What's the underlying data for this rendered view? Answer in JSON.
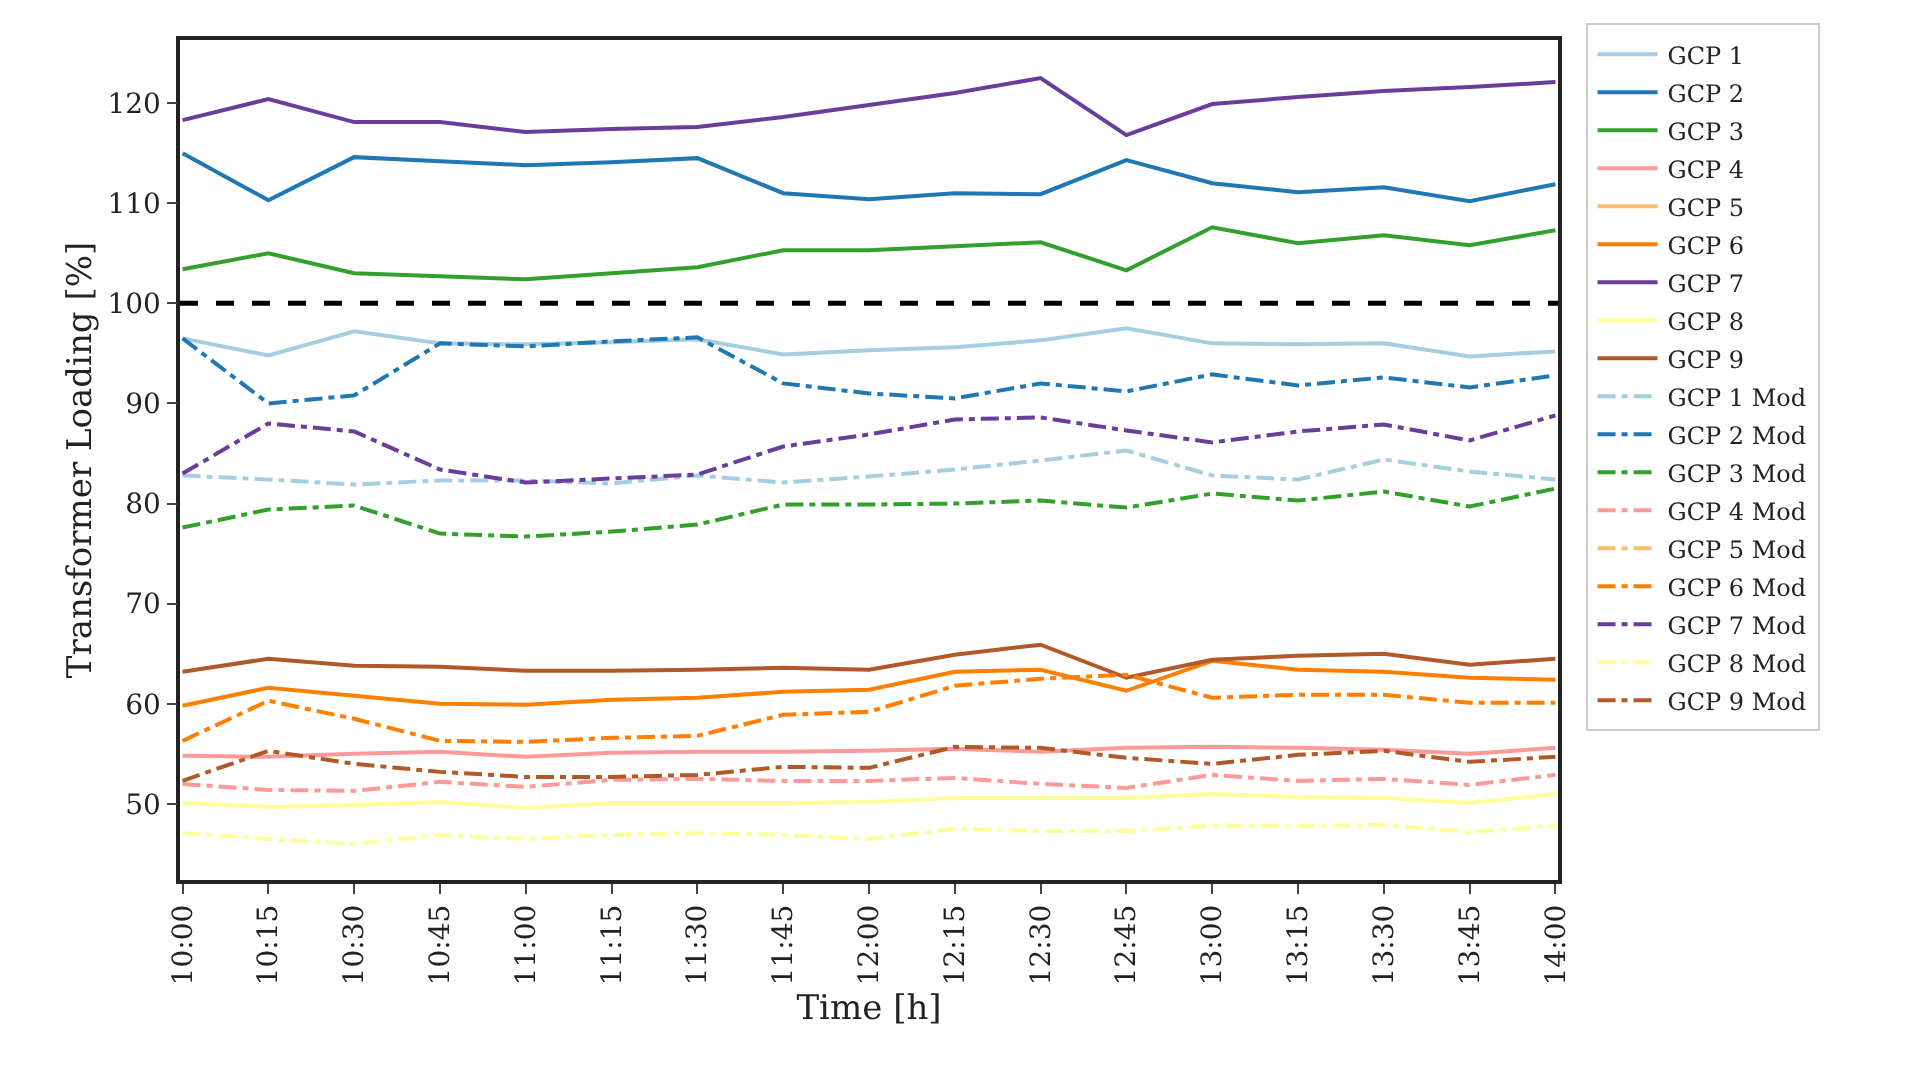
{
  "chart_data": {
    "type": "line",
    "xlabel": "Time [h]",
    "ylabel": "Transformer Loading [%]",
    "categories": [
      "10:00",
      "10:15",
      "10:30",
      "10:45",
      "11:00",
      "11:15",
      "11:30",
      "11:45",
      "12:00",
      "12:15",
      "12:30",
      "12:45",
      "13:00",
      "13:15",
      "13:30",
      "13:45",
      "14:00"
    ],
    "ylim": [
      42.4,
      126.3
    ],
    "yticks": [
      50,
      60,
      70,
      80,
      90,
      100,
      110,
      120
    ],
    "grid": false,
    "legend": "right",
    "marker": "none",
    "ref_lines": [
      {
        "axis": "y",
        "value": 100,
        "color": "#000000",
        "line_style": "dashed"
      }
    ],
    "series": [
      {
        "name": "GCP 1",
        "color": "#a6cee3",
        "line_style": "solid",
        "values": [
          96.5,
          94.8,
          97.2,
          96.0,
          95.9,
          96.1,
          96.4,
          94.9,
          95.3,
          95.6,
          96.3,
          97.5,
          96.0,
          95.9,
          96.0,
          94.7,
          95.2
        ]
      },
      {
        "name": "GCP 2",
        "color": "#1f78b4",
        "line_style": "solid",
        "values": [
          115.0,
          110.3,
          114.6,
          114.2,
          113.8,
          114.1,
          114.5,
          111.0,
          110.4,
          111.0,
          110.9,
          114.3,
          112.0,
          111.1,
          111.6,
          110.2,
          111.9
        ]
      },
      {
        "name": "GCP 3",
        "color": "#33a02c",
        "line_style": "solid",
        "values": [
          103.4,
          105.0,
          103.0,
          102.7,
          102.4,
          103.0,
          103.6,
          105.3,
          105.3,
          105.7,
          106.1,
          103.3,
          107.6,
          106.0,
          106.8,
          105.8,
          107.3
        ]
      },
      {
        "name": "GCP 4",
        "color": "#fb9a99",
        "line_style": "solid",
        "values": [
          54.8,
          54.7,
          55.0,
          55.2,
          54.7,
          55.1,
          55.2,
          55.2,
          55.3,
          55.5,
          55.2,
          55.6,
          55.7,
          55.6,
          55.4,
          55.0,
          55.6
        ]
      },
      {
        "name": "GCP 5",
        "color": "#fdbf6f",
        "line_style": "solid",
        "values": [
          null,
          null,
          null,
          null,
          null,
          null,
          null,
          null,
          null,
          null,
          null,
          null,
          null,
          null,
          null,
          null,
          null
        ]
      },
      {
        "name": "GCP 6",
        "color": "#ff7f00",
        "line_style": "solid",
        "values": [
          59.8,
          61.6,
          60.8,
          60.0,
          59.9,
          60.4,
          60.6,
          61.2,
          61.4,
          63.2,
          63.4,
          61.3,
          64.3,
          63.4,
          63.2,
          62.6,
          62.4
        ]
      },
      {
        "name": "GCP 7",
        "color": "#6a3d9a",
        "line_style": "solid",
        "values": [
          118.3,
          120.4,
          118.1,
          118.1,
          117.1,
          117.4,
          117.6,
          118.6,
          119.8,
          121.0,
          122.5,
          116.8,
          119.9,
          120.6,
          121.2,
          121.6,
          122.1
        ]
      },
      {
        "name": "GCP 8",
        "color": "#ffff99",
        "line_style": "solid",
        "values": [
          50.1,
          49.7,
          49.9,
          50.2,
          49.6,
          50.1,
          50.1,
          50.1,
          50.2,
          50.6,
          50.6,
          50.6,
          51.0,
          50.7,
          50.6,
          50.1,
          51.0
        ]
      },
      {
        "name": "GCP 9",
        "color": "#b15928",
        "line_style": "solid",
        "values": [
          63.2,
          64.5,
          63.8,
          63.7,
          63.3,
          63.3,
          63.4,
          63.6,
          63.4,
          64.9,
          65.9,
          62.6,
          64.4,
          64.8,
          65.0,
          63.9,
          64.5
        ]
      },
      {
        "name": "GCP 1 Mod",
        "color": "#a6cee3",
        "line_style": "dashdot",
        "values": [
          82.8,
          82.4,
          81.9,
          82.3,
          82.3,
          82.0,
          82.8,
          82.1,
          82.7,
          83.4,
          84.3,
          85.3,
          82.8,
          82.4,
          84.4,
          83.2,
          82.4
        ]
      },
      {
        "name": "GCP 2 Mod",
        "color": "#1f78b4",
        "line_style": "dashdot",
        "values": [
          96.5,
          90.0,
          90.8,
          96.0,
          95.7,
          96.2,
          96.6,
          92.0,
          91.0,
          90.5,
          92.0,
          91.2,
          92.9,
          91.8,
          92.6,
          91.6,
          92.8
        ]
      },
      {
        "name": "GCP 3 Mod",
        "color": "#33a02c",
        "line_style": "dashdot",
        "values": [
          77.6,
          79.4,
          79.8,
          77.0,
          76.7,
          77.2,
          77.9,
          79.9,
          79.9,
          80.0,
          80.3,
          79.6,
          81.0,
          80.3,
          81.2,
          79.7,
          81.5
        ]
      },
      {
        "name": "GCP 4 Mod",
        "color": "#fb9a99",
        "line_style": "dashdot",
        "values": [
          52.0,
          51.4,
          51.3,
          52.2,
          51.7,
          52.4,
          52.5,
          52.3,
          52.3,
          52.6,
          52.0,
          51.6,
          52.9,
          52.3,
          52.5,
          51.9,
          52.9
        ]
      },
      {
        "name": "GCP 5 Mod",
        "color": "#fdbf6f",
        "line_style": "dashdot",
        "values": [
          null,
          null,
          null,
          null,
          null,
          null,
          null,
          null,
          null,
          null,
          null,
          null,
          null,
          null,
          null,
          null,
          null
        ]
      },
      {
        "name": "GCP 6 Mod",
        "color": "#ff7f00",
        "line_style": "dashdot",
        "values": [
          56.3,
          60.3,
          58.5,
          56.3,
          56.2,
          56.6,
          56.8,
          58.9,
          59.2,
          61.8,
          62.5,
          62.9,
          60.6,
          60.9,
          60.9,
          60.1,
          60.1
        ]
      },
      {
        "name": "GCP 7 Mod",
        "color": "#6a3d9a",
        "line_style": "dashdot",
        "values": [
          83.0,
          88.0,
          87.2,
          83.4,
          82.1,
          82.5,
          82.9,
          85.7,
          86.9,
          88.4,
          88.6,
          87.3,
          86.1,
          87.2,
          87.9,
          86.3,
          88.8
        ]
      },
      {
        "name": "GCP 8 Mod",
        "color": "#ffff99",
        "line_style": "dashdot",
        "values": [
          47.1,
          46.5,
          46.0,
          46.9,
          46.5,
          46.9,
          47.1,
          46.9,
          46.5,
          47.5,
          47.3,
          47.3,
          47.8,
          47.8,
          47.9,
          47.2,
          47.8
        ]
      },
      {
        "name": "GCP 9 Mod",
        "color": "#b15928",
        "line_style": "dashdot",
        "values": [
          52.3,
          55.3,
          54.0,
          53.2,
          52.7,
          52.7,
          52.9,
          53.7,
          53.6,
          55.7,
          55.6,
          54.6,
          54.0,
          54.9,
          55.3,
          54.2,
          54.7
        ]
      }
    ]
  }
}
